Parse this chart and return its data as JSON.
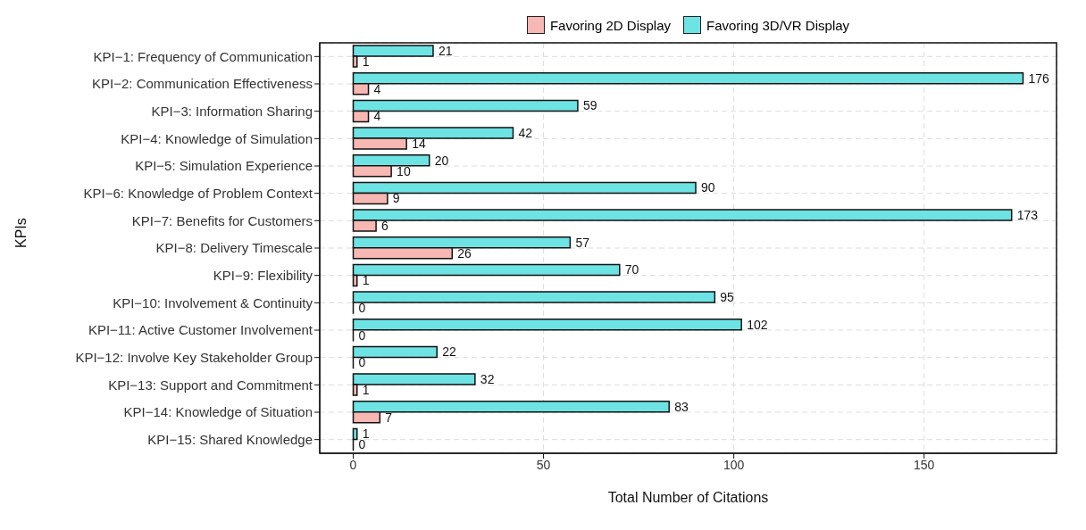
{
  "chart_data": {
    "type": "bar",
    "orientation": "horizontal",
    "xlabel": "Total Number of Citations",
    "ylabel": "KPIs",
    "categories": [
      "KPI−1: Frequency of Communication",
      "KPI−2: Communication Effectiveness",
      "KPI−3: Information Sharing",
      "KPI−4: Knowledge of Simulation",
      "KPI−5: Simulation Experience",
      "KPI−6: Knowledge of Problem Context",
      "KPI−7: Benefits for Customers",
      "KPI−8: Delivery Timescale",
      "KPI−9: Flexibility",
      "KPI−10: Involvement & Continuity",
      "KPI−11: Active Customer Involvement",
      "KPI−12: Involve Key Stakeholder Group",
      "KPI−13: Support and Commitment",
      "KPI−14: Knowledge of Situation",
      "KPI−15: Shared Knowledge"
    ],
    "series": [
      {
        "name": "Favoring 2D Display",
        "color": "#f7b7b2",
        "values": [
          1,
          4,
          4,
          14,
          10,
          9,
          6,
          26,
          1,
          0,
          0,
          0,
          1,
          7,
          0
        ]
      },
      {
        "name": "Favoring 3D/VR Display",
        "color": "#6ee3e3",
        "values": [
          21,
          176,
          59,
          42,
          20,
          90,
          173,
          57,
          70,
          95,
          102,
          22,
          32,
          83,
          1
        ]
      }
    ],
    "xlim": [
      -8.8,
      184.8
    ],
    "xticks": [
      0,
      50,
      100,
      150
    ],
    "grid": true,
    "legend": "top",
    "data_labels": true
  }
}
